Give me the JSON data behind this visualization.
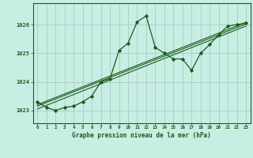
{
  "title": "Graphe pression niveau de la mer (hPa)",
  "bg_color": "#c8eee4",
  "grid_color": "#a8ccc4",
  "line_color": "#1a5c1a",
  "x_labels": [
    "0",
    "1",
    "2",
    "3",
    "4",
    "5",
    "6",
    "7",
    "8",
    "9",
    "10",
    "11",
    "12",
    "13",
    "14",
    "15",
    "16",
    "17",
    "18",
    "19",
    "20",
    "21",
    "22",
    "23"
  ],
  "ylim": [
    1022.55,
    1026.75
  ],
  "yticks": [
    1023,
    1024,
    1025,
    1026
  ],
  "series1": [
    1023.3,
    1023.1,
    1023.0,
    1023.1,
    1023.15,
    1023.3,
    1023.5,
    1024.0,
    1024.1,
    1025.1,
    1025.35,
    1026.1,
    1026.3,
    1025.2,
    1025.0,
    1024.8,
    1024.8,
    1024.4,
    1025.0,
    1025.3,
    1025.65,
    1025.95,
    1026.0,
    1026.05
  ],
  "series2_y": [
    1023.05,
    1025.95
  ],
  "series3_y": [
    1023.15,
    1026.02
  ],
  "series4_y": [
    1023.2,
    1026.08
  ]
}
